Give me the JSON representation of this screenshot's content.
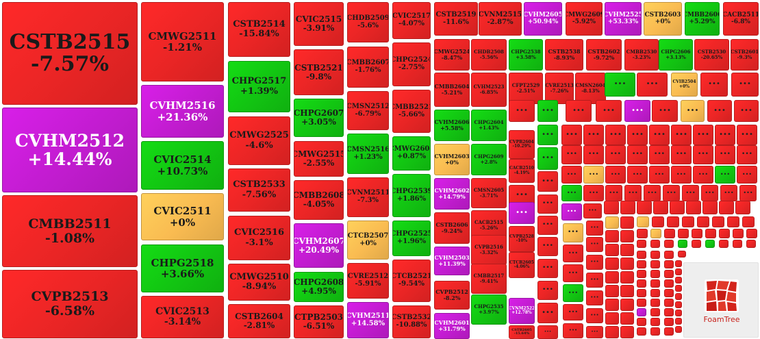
{
  "colors": {
    "down": "#e92525",
    "up": "#12c412",
    "flat": "#f9bb51",
    "strong_up": "#c11ccf",
    "logo_red": "#d3241b"
  },
  "logo": {
    "label": "FoamTree",
    "icon": "foamtree-logo-icon"
  },
  "chart_data": {
    "type": "treemap",
    "values_unit": "%",
    "nodes": [
      {
        "label": "CSTB2515",
        "change": "-7.57%"
      },
      {
        "label": "CVHM2512",
        "change": "+14.44%"
      },
      {
        "label": "CMBB2511",
        "change": "-1.08%"
      },
      {
        "label": "CVPB2513",
        "change": "-6.58%"
      },
      {
        "label": "CMWG2511",
        "change": "-1.21%"
      },
      {
        "label": "CVHM2516",
        "change": "+21.36%"
      },
      {
        "label": "CVIC2514",
        "change": "+10.73%"
      },
      {
        "label": "CVIC2511",
        "change": "+0%"
      },
      {
        "label": "CHPG2518",
        "change": "+3.66%"
      },
      {
        "label": "CVIC2513",
        "change": "-3.14%"
      },
      {
        "label": "CSTB2514",
        "change": "-15.84%"
      },
      {
        "label": "CHPG2517",
        "change": "+1.39%"
      },
      {
        "label": "CMWG2525",
        "change": "-4.6%"
      },
      {
        "label": "CSTB2533",
        "change": "-7.56%"
      },
      {
        "label": "CVIC2516",
        "change": "-3.1%"
      },
      {
        "label": "CMWG2510",
        "change": "-8.94%"
      },
      {
        "label": "CSTB2604",
        "change": "-2.81%"
      },
      {
        "label": "CVIC2515",
        "change": "-3.91%"
      },
      {
        "label": "CSTB2521",
        "change": "-9.8%"
      },
      {
        "label": "CHPG2607",
        "change": "+3.05%"
      },
      {
        "label": "CMWG2515",
        "change": "-2.55%"
      },
      {
        "label": "CMBB2608",
        "change": "-4.05%"
      },
      {
        "label": "CVHM2607",
        "change": "+20.49%"
      },
      {
        "label": "CHPG2608",
        "change": "+4.95%"
      },
      {
        "label": "CTPB2503",
        "change": "-6.51%"
      },
      {
        "label": "CHDB2509",
        "change": "-5.6%"
      },
      {
        "label": "CMBB2607",
        "change": "-1.76%"
      },
      {
        "label": "CMSN2512",
        "change": "-6.79%"
      },
      {
        "label": "CMSN2516",
        "change": "+1.23%"
      },
      {
        "label": "CVNM2511",
        "change": "-7.3%"
      },
      {
        "label": "CTCB2507",
        "change": "+0%"
      },
      {
        "label": "CVRE2512",
        "change": "-5.91%"
      },
      {
        "label": "CVHM2511",
        "change": "+14.58%"
      },
      {
        "label": "CVIC2517",
        "change": "-4.07%"
      },
      {
        "label": "CHPG2524",
        "change": "-2.75%"
      },
      {
        "label": "CMBB2521",
        "change": "-5.66%"
      },
      {
        "label": "CMWG2604",
        "change": "+0.87%"
      },
      {
        "label": "CHPG2539",
        "change": "+1.86%"
      },
      {
        "label": "CHPG2525",
        "change": "+1.96%"
      },
      {
        "label": "CTCB2521",
        "change": "-9.54%"
      },
      {
        "label": "CSTB2532",
        "change": "-10.88%"
      },
      {
        "label": "CSTB2519",
        "change": "-11.6%"
      },
      {
        "label": "CVNM2515",
        "change": "-2.87%"
      },
      {
        "label": "CVHM2605",
        "change": "+50.94%"
      },
      {
        "label": "CMWG2609",
        "change": "-5.92%"
      },
      {
        "label": "CVHM2525",
        "change": "+53.33%"
      },
      {
        "label": "CSTB2603",
        "change": "+0%"
      },
      {
        "label": "CMBB2606",
        "change": "+5.29%"
      },
      {
        "label": "CACB2511",
        "change": "-6.8%"
      },
      {
        "label": "CMWG2524",
        "change": "-8.47%"
      },
      {
        "label": "CHDB2508",
        "change": "-5.56%"
      },
      {
        "label": "CHPG2538",
        "change": "+3.58%"
      },
      {
        "label": "CSTB2538",
        "change": "-8.93%"
      },
      {
        "label": "CSTB2602",
        "change": "-9.72%"
      },
      {
        "label": "CMBB2530",
        "change": "-3.23%"
      },
      {
        "label": "CHPG2606",
        "change": "+3.13%"
      },
      {
        "label": "CSTB2530",
        "change": "-20.65%"
      },
      {
        "label": "CSTB2601",
        "change": "-9.3%"
      },
      {
        "label": "CMBB2604",
        "change": "-5.21%"
      },
      {
        "label": "CVHM2523",
        "change": "-6.85%"
      },
      {
        "label": "CFPT2529",
        "change": "-2.51%"
      },
      {
        "label": "CVRE2513",
        "change": "-7.26%"
      },
      {
        "label": "CMSN2604",
        "change": "-8.13%"
      },
      {
        "label": "CVIB2504",
        "change": "+0%"
      },
      {
        "label": "CVHM2606",
        "change": "+5.58%"
      },
      {
        "label": "CHPG2604",
        "change": "+1.43%"
      },
      {
        "label": "CVHM2603",
        "change": "+0%"
      },
      {
        "label": "CHPG2609",
        "change": "+2.8%"
      },
      {
        "label": "CVHM2602",
        "change": "+14.79%"
      },
      {
        "label": "CSTB2606",
        "change": "-9.24%"
      },
      {
        "label": "CVHM2503",
        "change": "+11.39%"
      },
      {
        "label": "CVPB2512",
        "change": "-8.2%"
      },
      {
        "label": "CVHM2601",
        "change": "+31.79%"
      },
      {
        "label": "CVPB2604",
        "change": "-10.29%"
      },
      {
        "label": "CACB2510",
        "change": "-4.19%"
      },
      {
        "label": "CMSN2605",
        "change": "-3.71%"
      },
      {
        "label": "CACB2515",
        "change": "-5.26%"
      },
      {
        "label": "CVPB2516",
        "change": "-3.32%"
      },
      {
        "label": "CMBB2517",
        "change": "-9.41%"
      },
      {
        "label": "CHPG2535",
        "change": "+3.97%"
      },
      {
        "label": "CVPB2528",
        "change": "-10%"
      },
      {
        "label": "CTCB2605",
        "change": "-4.06%"
      },
      {
        "label": "CVNM2522",
        "change": "+12.78%"
      },
      {
        "label": "CSTB2605",
        "change": "-15.64%"
      }
    ]
  }
}
